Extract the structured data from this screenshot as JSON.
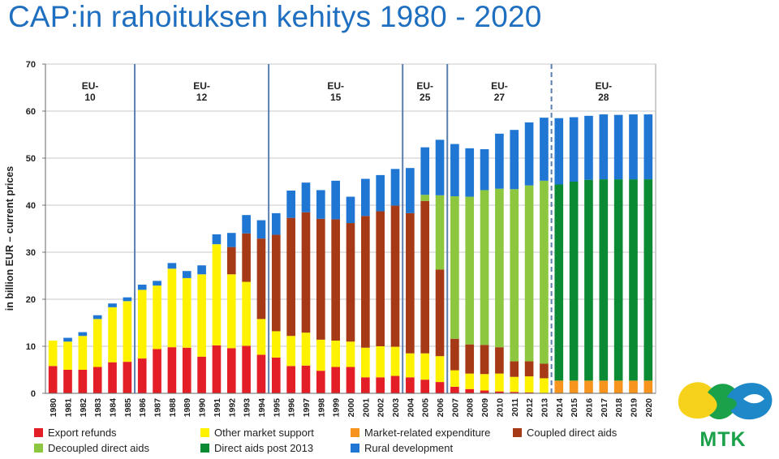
{
  "title": "CAP:in rahoituksen kehitys 1980 - 2020",
  "logo": {
    "text": "MTK",
    "colors": [
      "#f6d21c",
      "#1aa14a",
      "#1e88c8"
    ]
  },
  "chart_data": {
    "type": "bar",
    "stacked": true,
    "ylabel": "in billion EUR – current prices",
    "ylim": [
      0,
      70
    ],
    "yticks": [
      0,
      10,
      20,
      30,
      40,
      50,
      60,
      70
    ],
    "grid": true,
    "legend_position": "bottom",
    "categories": [
      "1980",
      "1981",
      "1982",
      "1983",
      "1984",
      "1985",
      "1986",
      "1987",
      "1988",
      "1989",
      "1990",
      "1991",
      "1992",
      "1993",
      "1994",
      "1995",
      "1996",
      "1997",
      "1998",
      "1999",
      "2000",
      "2001",
      "2002",
      "2003",
      "2004",
      "2005",
      "2006",
      "2007",
      "2008",
      "2009",
      "2010",
      "2011",
      "2012",
      "2013",
      "2014",
      "2015",
      "2016",
      "2017",
      "2018",
      "2019",
      "2020"
    ],
    "series": [
      {
        "name": "Export refunds",
        "color": "#e41e26",
        "values": [
          5.8,
          5.0,
          5.0,
          5.6,
          6.6,
          6.7,
          7.4,
          9.4,
          9.8,
          9.7,
          7.8,
          10.2,
          9.6,
          10.1,
          8.2,
          7.6,
          5.8,
          5.9,
          4.8,
          5.6,
          5.6,
          3.4,
          3.4,
          3.7,
          3.4,
          2.9,
          2.4,
          1.4,
          0.9,
          0.6,
          0.4,
          0.3,
          0.2,
          0.1,
          0,
          0,
          0,
          0,
          0,
          0,
          0
        ]
      },
      {
        "name": "Other market support",
        "color": "#fff200",
        "values": [
          5.4,
          6.0,
          7.2,
          10.2,
          11.7,
          12.9,
          14.6,
          13.5,
          16.7,
          14.8,
          17.5,
          21.5,
          15.7,
          13.6,
          7.6,
          5.6,
          6.4,
          7.0,
          6.6,
          5.6,
          5.4,
          6.3,
          6.6,
          6.2,
          5.1,
          5.6,
          5.5,
          3.5,
          3.3,
          3.5,
          3.8,
          3.2,
          3.4,
          3.1,
          0,
          0,
          0,
          0,
          0,
          0,
          0
        ]
      },
      {
        "name": "Market-related expenditure",
        "color": "#f7941d",
        "values": [
          0,
          0,
          0,
          0,
          0,
          0,
          0,
          0,
          0,
          0,
          0,
          0,
          0,
          0,
          0,
          0,
          0,
          0,
          0,
          0,
          0,
          0,
          0,
          0,
          0,
          0,
          0,
          0,
          0,
          0,
          0,
          0,
          0,
          0,
          2.7,
          2.7,
          2.7,
          2.7,
          2.7,
          2.7,
          2.7
        ]
      },
      {
        "name": "Coupled direct aids",
        "color": "#a63a16",
        "values": [
          0,
          0,
          0,
          0,
          0,
          0,
          0,
          0,
          0,
          0,
          0,
          0,
          5.8,
          10.3,
          17.1,
          20.5,
          25.1,
          25.6,
          25.7,
          25.8,
          25.2,
          28.0,
          28.7,
          30.0,
          29.8,
          32.4,
          18.4,
          6.7,
          6.2,
          6.2,
          5.6,
          3.3,
          3.2,
          3.1,
          0,
          0,
          0,
          0,
          0,
          0,
          0
        ]
      },
      {
        "name": "Decoupled direct aids",
        "color": "#8dc63f",
        "values": [
          0,
          0,
          0,
          0,
          0,
          0,
          0,
          0,
          0,
          0,
          0,
          0,
          0,
          0,
          0,
          0,
          0,
          0,
          0,
          0,
          0,
          0,
          0,
          0,
          0,
          1.3,
          15.8,
          30.3,
          31.4,
          32.9,
          33.7,
          36.6,
          37.4,
          38.9,
          0,
          0,
          0,
          0,
          0,
          0,
          0
        ]
      },
      {
        "name": "Direct aids post 2013",
        "color": "#0a8a32",
        "values": [
          0,
          0,
          0,
          0,
          0,
          0,
          0,
          0,
          0,
          0,
          0,
          0,
          0,
          0,
          0,
          0,
          0,
          0,
          0,
          0,
          0,
          0,
          0,
          0,
          0,
          0,
          0,
          0,
          0,
          0,
          0,
          0,
          0,
          0,
          41.7,
          42.3,
          42.7,
          42.8,
          42.8,
          42.8,
          42.8
        ]
      },
      {
        "name": "Rural development",
        "color": "#1f76d3",
        "values": [
          0,
          0.8,
          0.8,
          0.8,
          0.8,
          0.8,
          1.1,
          1.0,
          1.2,
          1.5,
          1.9,
          2.1,
          3.0,
          3.9,
          3.9,
          4.6,
          5.8,
          6.3,
          6.1,
          8.2,
          5.6,
          7.9,
          7.7,
          7.8,
          9.6,
          10.1,
          11.8,
          11.1,
          10.3,
          8.7,
          11.7,
          12.6,
          13.4,
          13.4,
          14.1,
          13.7,
          13.6,
          13.8,
          13.7,
          13.8,
          13.8
        ]
      }
    ],
    "eras": [
      {
        "label": "EU-\n10",
        "from": "1980",
        "to": "1985"
      },
      {
        "label": "EU-\n12",
        "from": "1986",
        "to": "1994"
      },
      {
        "label": "EU-\n15",
        "from": "1995",
        "to": "2003"
      },
      {
        "label": "EU-\n25",
        "from": "2004",
        "to": "2006"
      },
      {
        "label": "EU-\n27",
        "from": "2007",
        "to": "2013"
      },
      {
        "label": "EU-\n28",
        "from": "2014",
        "to": "2020"
      }
    ]
  }
}
